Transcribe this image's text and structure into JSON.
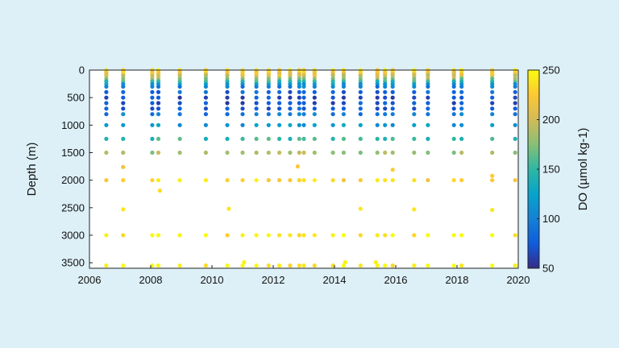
{
  "chart_data": {
    "type": "scatter",
    "title": "",
    "xlabel": "",
    "ylabel": "Depth (m)",
    "xlim": [
      2006,
      2020
    ],
    "ylim": [
      0,
      3600
    ],
    "y_reversed": true,
    "x_ticks": [
      2006,
      2008,
      2010,
      2012,
      2014,
      2016,
      2018,
      2020
    ],
    "y_ticks": [
      0,
      500,
      1000,
      1500,
      2000,
      2500,
      3000,
      3500
    ],
    "grid": false,
    "colorbar": {
      "label": "DO (µmol kg-1)",
      "min": 50,
      "max": 250,
      "ticks": [
        50,
        100,
        150,
        200,
        250
      ],
      "colormap": "parula",
      "stops": [
        "#352a87",
        "#0f5cdd",
        "#1481d6",
        "#06a4ca",
        "#2eb7a4",
        "#87bf77",
        "#d1bb59",
        "#fec832",
        "#f9fb0e"
      ]
    },
    "profile_dates": [
      2006.55,
      2007.1,
      2008.05,
      2008.25,
      2008.95,
      2009.8,
      2010.5,
      2011.0,
      2011.45,
      2011.85,
      2012.2,
      2012.55,
      2012.85,
      2013.0,
      2013.35,
      2013.95,
      2014.3,
      2014.85,
      2015.4,
      2015.65,
      2015.9,
      2016.6,
      2017.05,
      2017.9,
      2018.15,
      2019.15,
      2019.9
    ],
    "depth_levels_m": [
      0,
      25,
      50,
      75,
      100,
      150,
      200,
      250,
      300,
      400,
      500,
      600,
      700,
      800,
      1000,
      1250,
      1500,
      2000,
      3000,
      3550
    ],
    "do_profile_umol_kg": [
      238,
      232,
      225,
      215,
      205,
      182,
      155,
      122,
      100,
      80,
      70,
      72,
      78,
      95,
      118,
      150,
      185,
      232,
      243,
      245
    ],
    "points_note": "",
    "extra_points": [
      {
        "x": 2007.1,
        "y": 1760,
        "do": 215
      },
      {
        "x": 2007.1,
        "y": 2530,
        "do": 240
      },
      {
        "x": 2008.3,
        "y": 2190,
        "do": 235
      },
      {
        "x": 2010.55,
        "y": 2520,
        "do": 240
      },
      {
        "x": 2011.05,
        "y": 3490,
        "do": 245
      },
      {
        "x": 2012.8,
        "y": 1750,
        "do": 225
      },
      {
        "x": 2014.35,
        "y": 3490,
        "do": 245
      },
      {
        "x": 2014.85,
        "y": 2520,
        "do": 240
      },
      {
        "x": 2015.35,
        "y": 3490,
        "do": 245
      },
      {
        "x": 2015.9,
        "y": 1810,
        "do": 225
      },
      {
        "x": 2016.6,
        "y": 2530,
        "do": 240
      },
      {
        "x": 2019.15,
        "y": 1920,
        "do": 225
      },
      {
        "x": 2019.15,
        "y": 2540,
        "do": 240
      }
    ]
  }
}
